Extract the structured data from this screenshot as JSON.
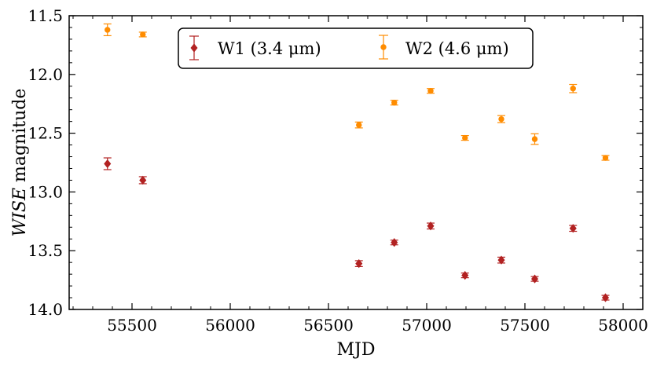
{
  "chart_data": {
    "type": "scatter",
    "title": "",
    "xlabel": "MJD",
    "ylabel_italic": "WISE",
    "ylabel_rest": " magnitude",
    "xlim": [
      55180,
      58100
    ],
    "ylim": [
      11.5,
      14.0
    ],
    "y_inverted": true,
    "x_ticks": [
      55500,
      56000,
      56500,
      57000,
      57500,
      58000
    ],
    "x_tick_labels": [
      "55500",
      "56000",
      "56500",
      "57000",
      "57500",
      "58000"
    ],
    "y_ticks": [
      11.5,
      12.0,
      12.5,
      13.0,
      13.5,
      14.0
    ],
    "y_tick_labels": [
      "11.5",
      "12.0",
      "12.5",
      "13.0",
      "13.5",
      "14.0"
    ],
    "legend_position": "top-center",
    "series": [
      {
        "name": "W1 (3.4 μm)",
        "legend_label": "W1 (3.4 μm)",
        "color": "#b22222",
        "marker": "diamond",
        "points": [
          {
            "x": 55375,
            "y": 12.76,
            "err": 0.05
          },
          {
            "x": 55555,
            "y": 12.9,
            "err": 0.03
          },
          {
            "x": 56655,
            "y": 13.61,
            "err": 0.025
          },
          {
            "x": 56835,
            "y": 13.43,
            "err": 0.02
          },
          {
            "x": 57020,
            "y": 13.29,
            "err": 0.025
          },
          {
            "x": 57195,
            "y": 13.71,
            "err": 0.02
          },
          {
            "x": 57380,
            "y": 13.58,
            "err": 0.025
          },
          {
            "x": 57550,
            "y": 13.74,
            "err": 0.02
          },
          {
            "x": 57745,
            "y": 13.31,
            "err": 0.025
          },
          {
            "x": 57910,
            "y": 13.9,
            "err": 0.02
          }
        ]
      },
      {
        "name": "W2 (4.6 μm)",
        "legend_label": "W2 (4.6 μm)",
        "color": "#ff8c00",
        "marker": "circle",
        "points": [
          {
            "x": 55375,
            "y": 11.62,
            "err": 0.05
          },
          {
            "x": 55555,
            "y": 11.66,
            "err": 0.02
          },
          {
            "x": 56655,
            "y": 12.43,
            "err": 0.025
          },
          {
            "x": 56835,
            "y": 12.24,
            "err": 0.02
          },
          {
            "x": 57020,
            "y": 12.14,
            "err": 0.02
          },
          {
            "x": 57195,
            "y": 12.54,
            "err": 0.02
          },
          {
            "x": 57380,
            "y": 12.38,
            "err": 0.03
          },
          {
            "x": 57550,
            "y": 12.55,
            "err": 0.045
          },
          {
            "x": 57745,
            "y": 12.12,
            "err": 0.035
          },
          {
            "x": 57910,
            "y": 12.71,
            "err": 0.02
          }
        ]
      }
    ]
  }
}
